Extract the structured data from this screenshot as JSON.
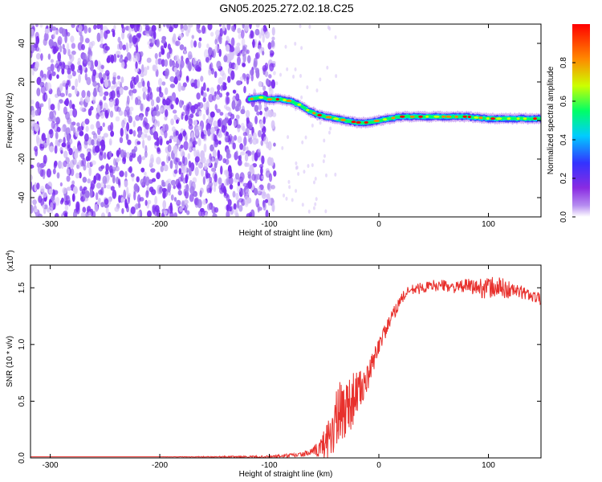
{
  "title": "GN05.2025.272.02.18.C25",
  "colors": {
    "snr_line": "#e8302c",
    "frame": "#000000",
    "noise": "#7a2fe0",
    "colormap": [
      "#ffffff",
      "#8a2be2",
      "#3333ff",
      "#00ccff",
      "#00ff66",
      "#ccff00",
      "#ff8800",
      "#ff0000"
    ]
  },
  "chart_data": [
    {
      "type": "heatmap",
      "name": "spectrogram",
      "title": "GN05.2025.272.02.18.C25",
      "xlabel": "Height of straight line (km)",
      "ylabel": "Frequency (Hz)",
      "xlim": [
        -318,
        148
      ],
      "ylim": [
        -50,
        50
      ],
      "x_ticks": [
        -300,
        -200,
        -100,
        0,
        100
      ],
      "x_tick_labels": [
        "-300",
        "-200",
        "-100",
        "0",
        "100"
      ],
      "y_ticks": [
        -40,
        -20,
        0,
        20,
        40
      ],
      "y_tick_labels": [
        "-40",
        "-20",
        "0",
        "20",
        "40"
      ],
      "noise_region": [
        -318,
        -95
      ],
      "ridge": {
        "x": [
          -118,
          -108,
          -100,
          -90,
          -80,
          -72,
          -64,
          -56,
          -48,
          -40,
          -30,
          -20,
          -10,
          0,
          10,
          20,
          40,
          60,
          80,
          100,
          120,
          148
        ],
        "freq": [
          11,
          12,
          11,
          11,
          10,
          8,
          5,
          3,
          2,
          1,
          0,
          -1,
          -1,
          0,
          1,
          2,
          2,
          2,
          2,
          1,
          1,
          1
        ]
      },
      "colorbar": {
        "label": "Normalized spectral amplitude",
        "range": [
          0,
          1
        ],
        "ticks": [
          0,
          0.2,
          0.4,
          0.6,
          0.8
        ],
        "tick_labels": [
          "0.0",
          "0.2",
          "0.4",
          "0.6",
          "0.8"
        ]
      }
    },
    {
      "type": "line",
      "name": "snr",
      "xlabel": "Height of straight line (km)",
      "ylabel": "SNR (10 * v/v)",
      "exponent_label": "(x10",
      "exponent_power": "4",
      "exponent_close": ")",
      "xlim": [
        -318,
        148
      ],
      "ylim": [
        0,
        1.7
      ],
      "x_ticks": [
        -300,
        -200,
        -100,
        0,
        100
      ],
      "x_tick_labels": [
        "-300",
        "-200",
        "-100",
        "0",
        "100"
      ],
      "y_ticks": [
        0,
        0.5,
        1.0,
        1.5
      ],
      "y_tick_labels": [
        "0.0",
        "0.5",
        "1.0",
        "1.5"
      ],
      "series": [
        {
          "name": "SNR",
          "x": [
            -318,
            -200,
            -100,
            -80,
            -70,
            -60,
            -52,
            -45,
            -40,
            -35,
            -30,
            -25,
            -20,
            -15,
            -10,
            -5,
            0,
            5,
            10,
            15,
            20,
            25,
            30,
            40,
            50,
            60,
            70,
            80,
            90,
            100,
            110,
            120,
            130,
            140,
            148
          ],
          "y": [
            0.01,
            0.01,
            0.01,
            0.02,
            0.03,
            0.05,
            0.1,
            0.2,
            0.3,
            0.38,
            0.45,
            0.5,
            0.58,
            0.62,
            0.7,
            0.85,
            1.0,
            1.1,
            1.2,
            1.3,
            1.4,
            1.45,
            1.48,
            1.5,
            1.52,
            1.52,
            1.5,
            1.52,
            1.5,
            1.5,
            1.5,
            1.48,
            1.46,
            1.43,
            1.4
          ],
          "noise_amplitude": [
            0,
            0,
            0.01,
            0.02,
            0.02,
            0.04,
            0.1,
            0.2,
            0.3,
            0.3,
            0.28,
            0.25,
            0.2,
            0.15,
            0.12,
            0.1,
            0.08,
            0.07,
            0.06,
            0.06,
            0.05,
            0.05,
            0.05,
            0.05,
            0.05,
            0.05,
            0.05,
            0.06,
            0.08,
            0.1,
            0.1,
            0.08,
            0.06,
            0.05,
            0.05
          ]
        }
      ]
    }
  ]
}
